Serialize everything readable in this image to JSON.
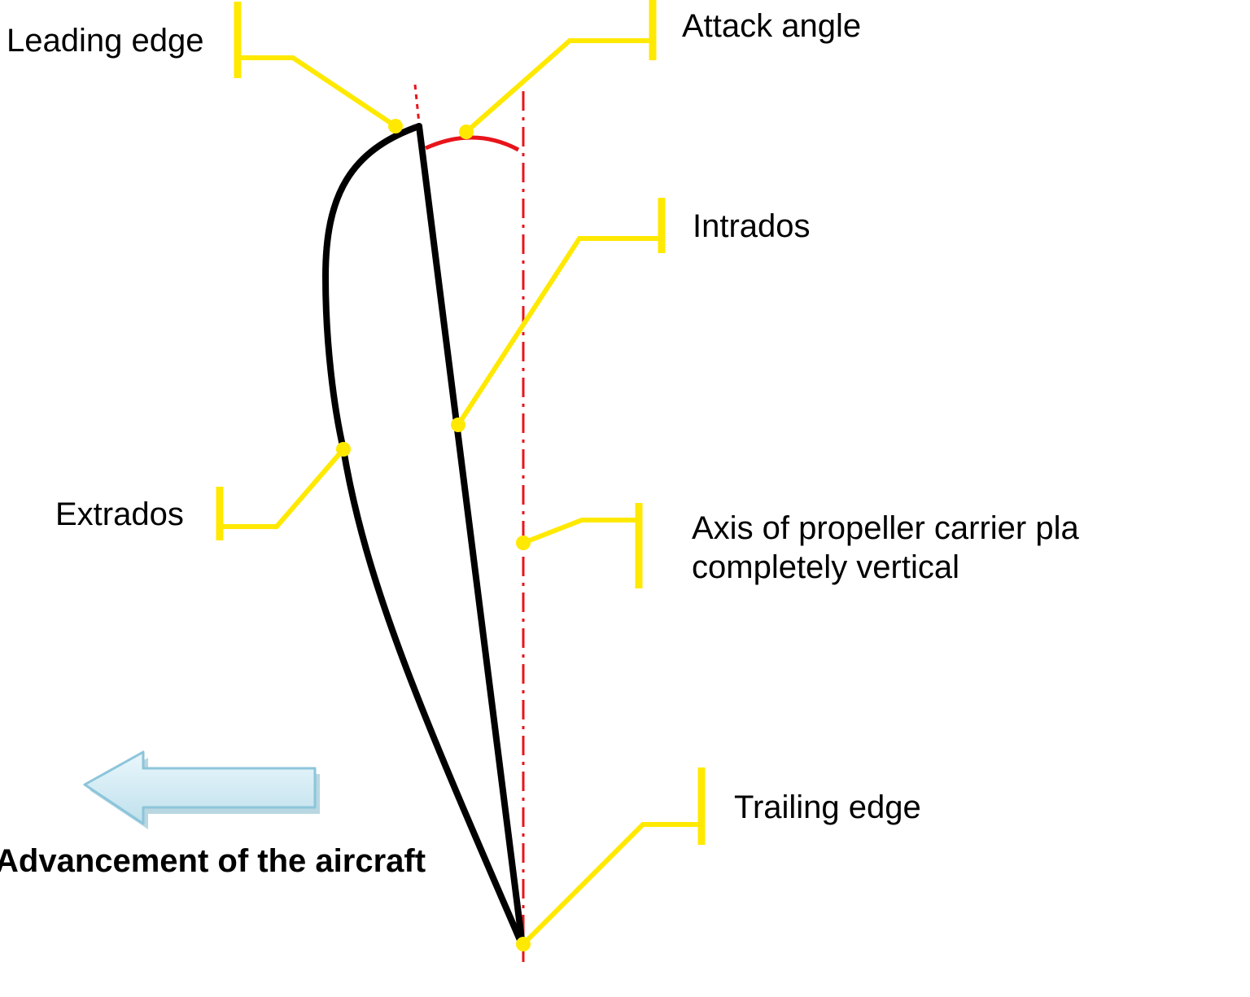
{
  "labels": {
    "leading_edge": "Leading edge",
    "attack_angle": "Attack angle",
    "intrados": "Intrados",
    "extrados": "Extrados",
    "axis_line1": "Axis of propeller carrier pla",
    "axis_line2": "completely vertical",
    "trailing_edge": "Trailing edge",
    "advancement": "Advancement of the aircraft"
  },
  "colors": {
    "profile": "#000000",
    "callout": "#FFE900",
    "axis": "#E8141B",
    "arrow_fill": "#D6EEF7",
    "arrow_stroke": "#8CC5DA"
  },
  "icons": {
    "direction_arrow": "left-arrow-icon"
  }
}
